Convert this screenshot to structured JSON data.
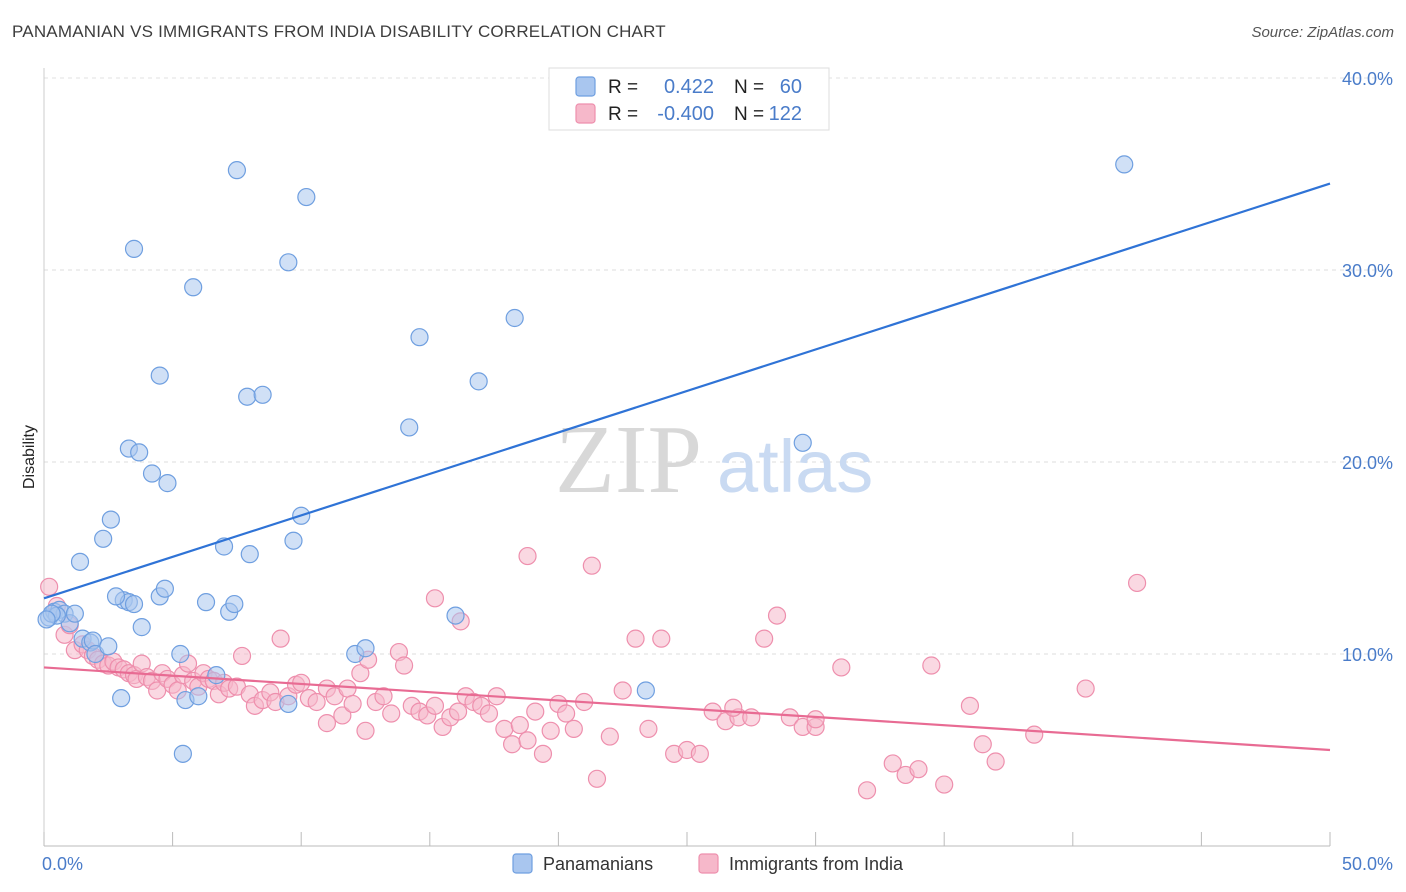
{
  "header": {
    "title": "PANAMANIAN VS IMMIGRANTS FROM INDIA DISABILITY CORRELATION CHART",
    "source": "Source: ZipAtlas.com"
  },
  "watermark": {
    "zip": "ZIP",
    "atlas": "atlas"
  },
  "legend_box": {
    "rows": [
      {
        "r_label": "R =",
        "r_value": "0.422",
        "n_label": "N =",
        "n_value": "60"
      },
      {
        "r_label": "R =",
        "r_value": "-0.400",
        "n_label": "N =",
        "n_value": "122"
      }
    ]
  },
  "colors": {
    "blue_fill": "#a9c6ef",
    "blue_stroke": "#6f9fe0",
    "blue_line": "#2f73d6",
    "pink_fill": "#f6b8ca",
    "pink_stroke": "#ee8fad",
    "pink_line": "#e86b93",
    "value_text": "#4a7cc9"
  },
  "chart_data": {
    "type": "scatter",
    "title": "PANAMANIAN VS IMMIGRANTS FROM INDIA DISABILITY CORRELATION CHART",
    "xlabel": "",
    "ylabel": "Disability",
    "xlim": [
      0,
      50
    ],
    "ylim": [
      0,
      40
    ],
    "x_tick_labels": [
      "0.0%",
      "50.0%"
    ],
    "y_ticks": [
      10,
      20,
      30,
      40
    ],
    "y_tick_labels": [
      "10.0%",
      "20.0%",
      "30.0%",
      "40.0%"
    ],
    "legend": [
      "Panamanians",
      "Immigrants from India"
    ],
    "series": [
      {
        "name": "Panamanians",
        "color": "#6f9fe0",
        "r": 0.422,
        "n": 60,
        "trend": {
          "x": [
            0,
            50
          ],
          "y": [
            12.9,
            34.5
          ]
        },
        "points": [
          [
            0.2,
            11.9
          ],
          [
            0.4,
            12.2
          ],
          [
            0.6,
            12.3
          ],
          [
            0.8,
            12.1
          ],
          [
            1.0,
            11.6
          ],
          [
            1.2,
            12.1
          ],
          [
            0.5,
            12.0
          ],
          [
            0.3,
            12.1
          ],
          [
            1.5,
            10.8
          ],
          [
            1.8,
            10.6
          ],
          [
            1.9,
            10.7
          ],
          [
            2.0,
            10.0
          ],
          [
            3.0,
            7.7
          ],
          [
            3.1,
            12.8
          ],
          [
            3.3,
            12.7
          ],
          [
            3.5,
            12.6
          ],
          [
            1.4,
            14.8
          ],
          [
            2.3,
            16.0
          ],
          [
            2.6,
            17.0
          ],
          [
            2.8,
            13.0
          ],
          [
            3.8,
            11.4
          ],
          [
            4.5,
            13.0
          ],
          [
            4.7,
            13.4
          ],
          [
            5.3,
            10.0
          ],
          [
            5.4,
            4.8
          ],
          [
            5.5,
            7.6
          ],
          [
            6.0,
            7.8
          ],
          [
            6.3,
            12.7
          ],
          [
            6.7,
            8.9
          ],
          [
            7.2,
            12.2
          ],
          [
            7.4,
            12.6
          ],
          [
            3.3,
            20.7
          ],
          [
            3.7,
            20.5
          ],
          [
            4.2,
            19.4
          ],
          [
            4.8,
            18.9
          ],
          [
            2.5,
            10.4
          ],
          [
            3.5,
            31.1
          ],
          [
            4.5,
            24.5
          ],
          [
            5.8,
            29.1
          ],
          [
            7.5,
            35.2
          ],
          [
            7.9,
            23.4
          ],
          [
            8.5,
            23.5
          ],
          [
            9.5,
            30.4
          ],
          [
            9.7,
            15.9
          ],
          [
            10.2,
            33.8
          ],
          [
            10.0,
            17.2
          ],
          [
            12.1,
            10.0
          ],
          [
            12.5,
            10.3
          ],
          [
            7.0,
            15.6
          ],
          [
            8.0,
            15.2
          ],
          [
            14.2,
            21.8
          ],
          [
            14.6,
            26.5
          ],
          [
            16.0,
            12.0
          ],
          [
            16.9,
            24.2
          ],
          [
            18.3,
            27.5
          ],
          [
            23.4,
            8.1
          ],
          [
            29.5,
            21.0
          ],
          [
            42.0,
            35.5
          ],
          [
            9.5,
            7.4
          ],
          [
            0.1,
            11.8
          ]
        ]
      },
      {
        "name": "Immigrants from India",
        "color": "#ee8fad",
        "r": -0.4,
        "n": 122,
        "trend": {
          "x": [
            0,
            50
          ],
          "y": [
            9.3,
            5.0
          ]
        },
        "points": [
          [
            0.2,
            13.5
          ],
          [
            0.5,
            12.5
          ],
          [
            0.8,
            11.0
          ],
          [
            1.0,
            11.5
          ],
          [
            1.2,
            10.2
          ],
          [
            1.5,
            10.5
          ],
          [
            1.7,
            10.2
          ],
          [
            1.9,
            9.9
          ],
          [
            2.1,
            9.7
          ],
          [
            2.3,
            9.5
          ],
          [
            2.5,
            9.4
          ],
          [
            2.7,
            9.6
          ],
          [
            2.9,
            9.3
          ],
          [
            3.1,
            9.2
          ],
          [
            3.3,
            9.0
          ],
          [
            3.5,
            8.9
          ],
          [
            3.6,
            8.7
          ],
          [
            3.8,
            9.5
          ],
          [
            4.0,
            8.8
          ],
          [
            4.2,
            8.6
          ],
          [
            4.4,
            8.1
          ],
          [
            4.6,
            9.0
          ],
          [
            4.8,
            8.7
          ],
          [
            5.0,
            8.4
          ],
          [
            5.2,
            8.1
          ],
          [
            5.4,
            8.9
          ],
          [
            5.6,
            9.5
          ],
          [
            5.8,
            8.6
          ],
          [
            6.0,
            8.3
          ],
          [
            6.2,
            9.0
          ],
          [
            6.4,
            8.7
          ],
          [
            6.6,
            8.6
          ],
          [
            6.8,
            7.9
          ],
          [
            7.0,
            8.5
          ],
          [
            7.2,
            8.2
          ],
          [
            7.5,
            8.3
          ],
          [
            7.7,
            9.9
          ],
          [
            8.0,
            7.9
          ],
          [
            8.2,
            7.3
          ],
          [
            8.5,
            7.6
          ],
          [
            8.8,
            8.0
          ],
          [
            9.0,
            7.5
          ],
          [
            9.2,
            10.8
          ],
          [
            9.5,
            7.8
          ],
          [
            9.8,
            8.4
          ],
          [
            10.0,
            8.5
          ],
          [
            10.3,
            7.7
          ],
          [
            10.6,
            7.5
          ],
          [
            11.0,
            8.2
          ],
          [
            11.3,
            7.8
          ],
          [
            11.6,
            6.8
          ],
          [
            11.8,
            8.2
          ],
          [
            12.0,
            7.4
          ],
          [
            12.3,
            9.0
          ],
          [
            12.6,
            9.7
          ],
          [
            12.9,
            7.5
          ],
          [
            13.2,
            7.8
          ],
          [
            13.5,
            6.9
          ],
          [
            13.8,
            10.1
          ],
          [
            14.0,
            9.4
          ],
          [
            14.3,
            7.3
          ],
          [
            14.6,
            7.0
          ],
          [
            14.9,
            6.8
          ],
          [
            15.2,
            7.3
          ],
          [
            15.5,
            6.2
          ],
          [
            15.8,
            6.7
          ],
          [
            16.1,
            7.0
          ],
          [
            16.4,
            7.8
          ],
          [
            16.7,
            7.5
          ],
          [
            17.0,
            7.3
          ],
          [
            17.3,
            6.9
          ],
          [
            17.6,
            7.8
          ],
          [
            17.9,
            6.1
          ],
          [
            18.2,
            5.3
          ],
          [
            18.5,
            6.3
          ],
          [
            18.8,
            5.5
          ],
          [
            19.1,
            7.0
          ],
          [
            19.4,
            4.8
          ],
          [
            19.7,
            6.0
          ],
          [
            20.0,
            7.4
          ],
          [
            20.3,
            6.9
          ],
          [
            20.6,
            6.1
          ],
          [
            21.0,
            7.5
          ],
          [
            21.5,
            3.5
          ],
          [
            22.0,
            5.7
          ],
          [
            22.5,
            8.1
          ],
          [
            23.0,
            10.8
          ],
          [
            23.5,
            6.1
          ],
          [
            24.0,
            10.8
          ],
          [
            24.5,
            4.8
          ],
          [
            25.0,
            5.0
          ],
          [
            25.5,
            4.8
          ],
          [
            26.0,
            7.0
          ],
          [
            26.5,
            6.5
          ],
          [
            27.0,
            6.7
          ],
          [
            27.5,
            6.7
          ],
          [
            28.0,
            10.8
          ],
          [
            29.0,
            6.7
          ],
          [
            29.5,
            6.2
          ],
          [
            30.0,
            6.2
          ],
          [
            31.0,
            9.3
          ],
          [
            32.0,
            2.9
          ],
          [
            33.0,
            4.3
          ],
          [
            33.5,
            3.7
          ],
          [
            34.0,
            4.0
          ],
          [
            34.5,
            9.4
          ],
          [
            35.0,
            3.2
          ],
          [
            36.0,
            7.3
          ],
          [
            36.5,
            5.3
          ],
          [
            37.0,
            4.4
          ],
          [
            38.5,
            5.8
          ],
          [
            40.5,
            8.2
          ],
          [
            42.5,
            13.7
          ],
          [
            28.5,
            12.0
          ],
          [
            15.2,
            12.9
          ],
          [
            16.2,
            11.7
          ],
          [
            18.8,
            15.1
          ],
          [
            21.3,
            14.6
          ],
          [
            26.8,
            7.2
          ],
          [
            30.0,
            6.6
          ],
          [
            12.5,
            6.0
          ],
          [
            11.0,
            6.4
          ]
        ]
      }
    ]
  }
}
